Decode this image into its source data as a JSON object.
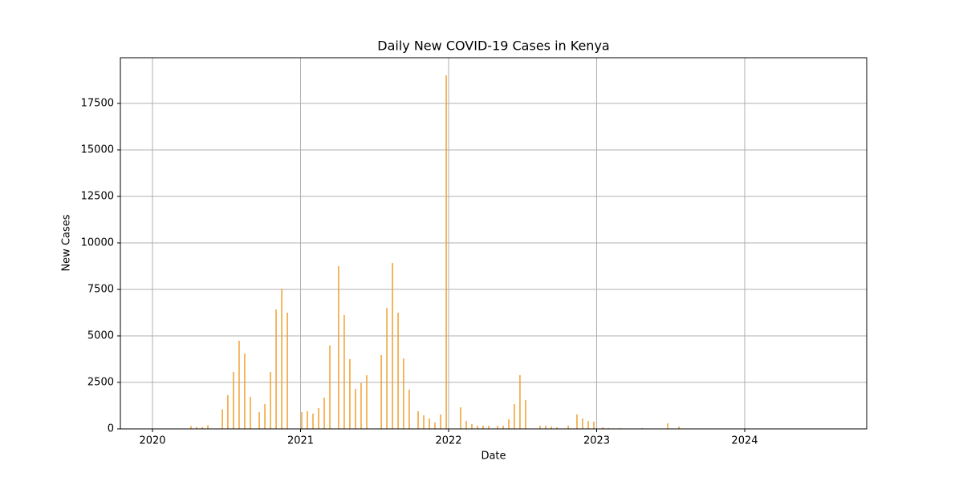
{
  "chart_data": {
    "type": "bar",
    "title": "Daily New COVID-19 Cases in Kenya",
    "xlabel": "Date",
    "ylabel": "New Cases",
    "color": "#f0a030",
    "x": [
      2020.26,
      2020.298,
      2020.336,
      2020.374,
      2020.472,
      2020.509,
      2020.547,
      2020.585,
      2020.623,
      2020.661,
      2020.721,
      2020.759,
      2020.797,
      2020.835,
      2020.873,
      2020.911,
      2021.008,
      2021.046,
      2021.084,
      2021.122,
      2021.16,
      2021.198,
      2021.257,
      2021.295,
      2021.333,
      2021.371,
      2021.409,
      2021.447,
      2021.545,
      2021.583,
      2021.621,
      2021.659,
      2021.696,
      2021.734,
      2021.794,
      2021.832,
      2021.87,
      2021.908,
      2021.946,
      2021.984,
      2022.081,
      2022.119,
      2022.157,
      2022.195,
      2022.233,
      2022.271,
      2022.331,
      2022.369,
      2022.407,
      2022.444,
      2022.482,
      2022.52,
      2022.618,
      2022.656,
      2022.694,
      2022.732,
      2022.808,
      2022.867,
      2022.905,
      2022.943,
      2022.981,
      2023.041,
      2023.079,
      2023.154,
      2023.306,
      2023.48,
      2023.556
    ],
    "values": [
      150,
      100,
      100,
      200,
      1050,
      1810,
      3060,
      4740,
      4050,
      1720,
      900,
      1330,
      3060,
      6420,
      7540,
      6250,
      900,
      950,
      820,
      1120,
      1680,
      4480,
      8750,
      6120,
      3750,
      2150,
      2460,
      2890,
      3970,
      6510,
      8920,
      6250,
      3790,
      2110,
      950,
      730,
      560,
      340,
      780,
      19010,
      1160,
      430,
      260,
      170,
      170,
      170,
      170,
      170,
      520,
      1340,
      2890,
      1550,
      170,
      170,
      130,
      90,
      170,
      780,
      560,
      430,
      390,
      90,
      40,
      40,
      40,
      300,
      130
    ],
    "xlim": [
      2019.783,
      2024.824
    ],
    "xticks": [
      2020,
      2021,
      2022,
      2023,
      2024
    ],
    "ylim": [
      0,
      19957
    ],
    "yticks": [
      0,
      2500,
      5000,
      7500,
      10000,
      12500,
      15000,
      17500
    ],
    "grid": true
  }
}
